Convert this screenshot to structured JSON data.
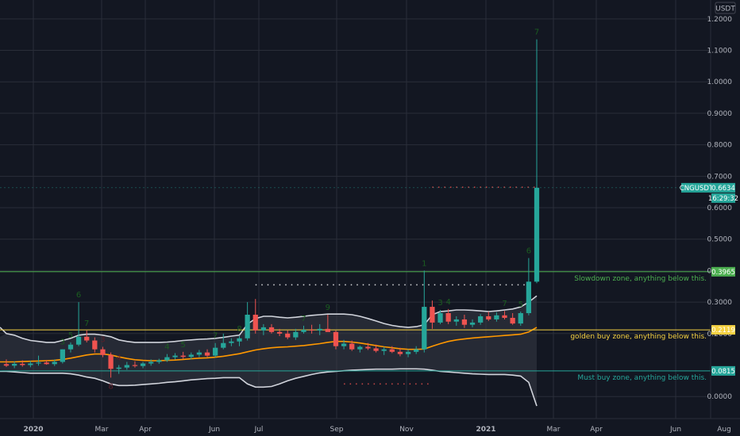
{
  "currency_label": "USDT",
  "ticker_label": "CNGUSDT",
  "colors": {
    "background": "#131722",
    "grid": "#2a2e39",
    "up": "#26a69a",
    "down": "#ef5350",
    "slowdown_line": "#4caf50",
    "golden_line": "#f5d142",
    "must_line": "#26a69a",
    "band_outer": "#d1d4dc",
    "band_mid": "#ff9800",
    "band_fill": "#2a2e39",
    "count_green": "#1b5e20",
    "count_red": "#5d1f2a",
    "axis_text": "#b2b5be",
    "price_box_last": "#26a69a",
    "price_box_yellow": "#f5d142"
  },
  "chart_data": {
    "type": "candlestick",
    "title": "",
    "x_axis": {
      "ticks": [
        "2020",
        "Mar",
        "Apr",
        "Jun",
        "Jul",
        "Sep",
        "Nov",
        "2021",
        "Mar",
        "Apr",
        "Jun",
        "Aug"
      ],
      "range": [
        "Dec 2019",
        "Aug 2021"
      ]
    },
    "y_axis": {
      "ticks": [
        0.0,
        0.0815,
        0.2,
        0.3,
        0.4,
        0.5,
        0.6,
        0.7,
        0.8,
        0.9,
        1.0,
        1.1,
        1.2
      ],
      "tick_labels": [
        "0.0000",
        "0.0815",
        "0.2000",
        "0.3000",
        "0.4000",
        "0.5000",
        "0.6000",
        "0.7000",
        "0.8000",
        "0.9000",
        "1.0000",
        "1.1000",
        "1.2000"
      ],
      "range": [
        -0.07,
        1.26
      ],
      "grid": true
    },
    "last_price": {
      "value": 0.6634,
      "label": "0.6634",
      "countdown": "16:29:32"
    },
    "horizontal_levels": [
      {
        "value": 0.3965,
        "label": "0.3965",
        "text": "Slowdown zone, anything below this.",
        "color": "#4caf50"
      },
      {
        "value": 0.2119,
        "label": "0.2119",
        "text": "golden buy zone, anything below this.",
        "color": "#f5d142"
      },
      {
        "value": 0.0815,
        "label": "0.0815",
        "text": "Must buy zone, anything below this.",
        "color": "#26a69a"
      }
    ],
    "candles": [
      {
        "o": 0.103,
        "h": 0.118,
        "l": 0.094,
        "c": 0.098
      },
      {
        "o": 0.098,
        "h": 0.112,
        "l": 0.09,
        "c": 0.104
      },
      {
        "o": 0.104,
        "h": 0.115,
        "l": 0.095,
        "c": 0.1
      },
      {
        "o": 0.1,
        "h": 0.113,
        "l": 0.093,
        "c": 0.105
      },
      {
        "o": 0.105,
        "h": 0.13,
        "l": 0.098,
        "c": 0.108
      },
      {
        "o": 0.108,
        "h": 0.116,
        "l": 0.101,
        "c": 0.103
      },
      {
        "o": 0.103,
        "h": 0.118,
        "l": 0.097,
        "c": 0.11
      },
      {
        "o": 0.11,
        "h": 0.15,
        "l": 0.105,
        "c": 0.15
      },
      {
        "o": 0.15,
        "h": 0.172,
        "l": 0.14,
        "c": 0.165
      },
      {
        "o": 0.165,
        "h": 0.3,
        "l": 0.16,
        "c": 0.19
      },
      {
        "o": 0.19,
        "h": 0.21,
        "l": 0.172,
        "c": 0.178
      },
      {
        "o": 0.178,
        "h": 0.188,
        "l": 0.14,
        "c": 0.15
      },
      {
        "o": 0.15,
        "h": 0.158,
        "l": 0.125,
        "c": 0.132
      },
      {
        "o": 0.132,
        "h": 0.14,
        "l": 0.06,
        "c": 0.088
      },
      {
        "o": 0.088,
        "h": 0.1,
        "l": 0.072,
        "c": 0.092
      },
      {
        "o": 0.092,
        "h": 0.11,
        "l": 0.085,
        "c": 0.1
      },
      {
        "o": 0.1,
        "h": 0.112,
        "l": 0.092,
        "c": 0.097
      },
      {
        "o": 0.097,
        "h": 0.11,
        "l": 0.09,
        "c": 0.105
      },
      {
        "o": 0.105,
        "h": 0.118,
        "l": 0.098,
        "c": 0.11
      },
      {
        "o": 0.11,
        "h": 0.12,
        "l": 0.104,
        "c": 0.115
      },
      {
        "o": 0.115,
        "h": 0.135,
        "l": 0.11,
        "c": 0.125
      },
      {
        "o": 0.125,
        "h": 0.138,
        "l": 0.118,
        "c": 0.13
      },
      {
        "o": 0.13,
        "h": 0.142,
        "l": 0.12,
        "c": 0.126
      },
      {
        "o": 0.126,
        "h": 0.14,
        "l": 0.118,
        "c": 0.133
      },
      {
        "o": 0.133,
        "h": 0.148,
        "l": 0.125,
        "c": 0.14
      },
      {
        "o": 0.14,
        "h": 0.15,
        "l": 0.125,
        "c": 0.13
      },
      {
        "o": 0.13,
        "h": 0.17,
        "l": 0.125,
        "c": 0.155
      },
      {
        "o": 0.155,
        "h": 0.2,
        "l": 0.15,
        "c": 0.17
      },
      {
        "o": 0.17,
        "h": 0.185,
        "l": 0.16,
        "c": 0.175
      },
      {
        "o": 0.175,
        "h": 0.192,
        "l": 0.16,
        "c": 0.185
      },
      {
        "o": 0.185,
        "h": 0.3,
        "l": 0.178,
        "c": 0.26
      },
      {
        "o": 0.26,
        "h": 0.31,
        "l": 0.2,
        "c": 0.21
      },
      {
        "o": 0.21,
        "h": 0.23,
        "l": 0.195,
        "c": 0.22
      },
      {
        "o": 0.22,
        "h": 0.23,
        "l": 0.2,
        "c": 0.205
      },
      {
        "o": 0.205,
        "h": 0.215,
        "l": 0.192,
        "c": 0.2
      },
      {
        "o": 0.2,
        "h": 0.21,
        "l": 0.182,
        "c": 0.188
      },
      {
        "o": 0.188,
        "h": 0.215,
        "l": 0.18,
        "c": 0.205
      },
      {
        "o": 0.205,
        "h": 0.225,
        "l": 0.2,
        "c": 0.212
      },
      {
        "o": 0.212,
        "h": 0.228,
        "l": 0.2,
        "c": 0.21
      },
      {
        "o": 0.21,
        "h": 0.23,
        "l": 0.195,
        "c": 0.215
      },
      {
        "o": 0.215,
        "h": 0.26,
        "l": 0.208,
        "c": 0.205
      },
      {
        "o": 0.205,
        "h": 0.21,
        "l": 0.15,
        "c": 0.16
      },
      {
        "o": 0.16,
        "h": 0.18,
        "l": 0.15,
        "c": 0.168
      },
      {
        "o": 0.168,
        "h": 0.178,
        "l": 0.145,
        "c": 0.15
      },
      {
        "o": 0.15,
        "h": 0.162,
        "l": 0.14,
        "c": 0.158
      },
      {
        "o": 0.158,
        "h": 0.17,
        "l": 0.148,
        "c": 0.153
      },
      {
        "o": 0.153,
        "h": 0.165,
        "l": 0.14,
        "c": 0.145
      },
      {
        "o": 0.145,
        "h": 0.158,
        "l": 0.132,
        "c": 0.15
      },
      {
        "o": 0.15,
        "h": 0.16,
        "l": 0.138,
        "c": 0.142
      },
      {
        "o": 0.142,
        "h": 0.155,
        "l": 0.128,
        "c": 0.135
      },
      {
        "o": 0.135,
        "h": 0.15,
        "l": 0.125,
        "c": 0.142
      },
      {
        "o": 0.142,
        "h": 0.16,
        "l": 0.135,
        "c": 0.15
      },
      {
        "o": 0.15,
        "h": 0.4,
        "l": 0.14,
        "c": 0.285
      },
      {
        "o": 0.285,
        "h": 0.305,
        "l": 0.215,
        "c": 0.235
      },
      {
        "o": 0.235,
        "h": 0.275,
        "l": 0.23,
        "c": 0.265
      },
      {
        "o": 0.265,
        "h": 0.278,
        "l": 0.23,
        "c": 0.238
      },
      {
        "o": 0.238,
        "h": 0.255,
        "l": 0.225,
        "c": 0.245
      },
      {
        "o": 0.245,
        "h": 0.26,
        "l": 0.218,
        "c": 0.228
      },
      {
        "o": 0.228,
        "h": 0.245,
        "l": 0.22,
        "c": 0.235
      },
      {
        "o": 0.235,
        "h": 0.262,
        "l": 0.228,
        "c": 0.255
      },
      {
        "o": 0.255,
        "h": 0.27,
        "l": 0.24,
        "c": 0.245
      },
      {
        "o": 0.245,
        "h": 0.268,
        "l": 0.238,
        "c": 0.258
      },
      {
        "o": 0.258,
        "h": 0.272,
        "l": 0.245,
        "c": 0.25
      },
      {
        "o": 0.25,
        "h": 0.265,
        "l": 0.228,
        "c": 0.232
      },
      {
        "o": 0.232,
        "h": 0.27,
        "l": 0.225,
        "c": 0.265
      },
      {
        "o": 0.265,
        "h": 0.44,
        "l": 0.258,
        "c": 0.365
      },
      {
        "o": 0.365,
        "h": 1.135,
        "l": 0.36,
        "c": 0.6634
      }
    ],
    "bands": {
      "upper": [
        0.2,
        0.195,
        0.185,
        0.178,
        0.175,
        0.172,
        0.172,
        0.178,
        0.185,
        0.195,
        0.198,
        0.198,
        0.195,
        0.19,
        0.18,
        0.175,
        0.172,
        0.172,
        0.172,
        0.172,
        0.173,
        0.175,
        0.178,
        0.18,
        0.182,
        0.183,
        0.185,
        0.188,
        0.192,
        0.195,
        0.23,
        0.248,
        0.255,
        0.255,
        0.252,
        0.25,
        0.252,
        0.255,
        0.258,
        0.26,
        0.262,
        0.262,
        0.262,
        0.26,
        0.255,
        0.248,
        0.24,
        0.232,
        0.226,
        0.222,
        0.22,
        0.222,
        0.228,
        0.26,
        0.27,
        0.272,
        0.275,
        0.275,
        0.274,
        0.272,
        0.27,
        0.272,
        0.275,
        0.278,
        0.285,
        0.3,
        0.32
      ],
      "middle": [
        0.11,
        0.11,
        0.111,
        0.112,
        0.113,
        0.114,
        0.115,
        0.118,
        0.122,
        0.127,
        0.132,
        0.135,
        0.135,
        0.132,
        0.126,
        0.121,
        0.117,
        0.115,
        0.114,
        0.114,
        0.115,
        0.116,
        0.118,
        0.12,
        0.122,
        0.123,
        0.125,
        0.128,
        0.132,
        0.136,
        0.142,
        0.148,
        0.152,
        0.155,
        0.157,
        0.158,
        0.16,
        0.162,
        0.165,
        0.168,
        0.172,
        0.175,
        0.175,
        0.173,
        0.17,
        0.166,
        0.162,
        0.158,
        0.155,
        0.152,
        0.15,
        0.15,
        0.151,
        0.16,
        0.168,
        0.175,
        0.18,
        0.183,
        0.186,
        0.188,
        0.19,
        0.192,
        0.194,
        0.196,
        0.198,
        0.205,
        0.22
      ],
      "lower": [
        0.08,
        0.078,
        0.076,
        0.074,
        0.074,
        0.074,
        0.074,
        0.074,
        0.072,
        0.068,
        0.062,
        0.058,
        0.05,
        0.04,
        0.035,
        0.035,
        0.036,
        0.038,
        0.04,
        0.042,
        0.045,
        0.047,
        0.05,
        0.053,
        0.055,
        0.057,
        0.058,
        0.06,
        0.06,
        0.06,
        0.04,
        0.03,
        0.03,
        0.032,
        0.04,
        0.05,
        0.058,
        0.064,
        0.07,
        0.075,
        0.078,
        0.08,
        0.082,
        0.084,
        0.085,
        0.086,
        0.087,
        0.087,
        0.087,
        0.088,
        0.088,
        0.088,
        0.087,
        0.084,
        0.08,
        0.078,
        0.076,
        0.074,
        0.072,
        0.071,
        0.07,
        0.07,
        0.07,
        0.068,
        0.065,
        0.045,
        -0.03
      ]
    },
    "markers": [
      {
        "index": 9,
        "label": "6",
        "side": "top",
        "color": "#1b5e20"
      },
      {
        "index": 10,
        "label": "7",
        "side": "top",
        "color": "#1b5e20"
      },
      {
        "index": 7,
        "label": "3",
        "side": "top",
        "color": "#1b5e20"
      },
      {
        "index": 8,
        "label": "5",
        "side": "top",
        "color": "#1b5e20"
      },
      {
        "index": 13,
        "label": "8",
        "side": "bottom",
        "color": "#5d1f2a"
      },
      {
        "index": 14,
        "label": "4",
        "side": "top",
        "color": "#5d1f2a"
      },
      {
        "index": 12,
        "label": "3",
        "side": "top",
        "color": "#5d1f2a"
      },
      {
        "index": 20,
        "label": "4",
        "side": "top",
        "color": "#1b5e20"
      },
      {
        "index": 22,
        "label": "5",
        "side": "top",
        "color": "#1b5e20"
      },
      {
        "index": 26,
        "label": "7",
        "side": "top",
        "color": "#1b5e20"
      },
      {
        "index": 29,
        "label": "8",
        "side": "top",
        "color": "#1b5e20"
      },
      {
        "index": 37,
        "label": "7",
        "side": "top",
        "color": "#1b5e20"
      },
      {
        "index": 40,
        "label": "9",
        "side": "top",
        "color": "#1b5e20"
      },
      {
        "index": 52,
        "label": "1",
        "side": "top",
        "color": "#1b5e20"
      },
      {
        "index": 54,
        "label": "3",
        "side": "top",
        "color": "#1b5e20"
      },
      {
        "index": 55,
        "label": "4",
        "side": "top",
        "color": "#1b5e20"
      },
      {
        "index": 62,
        "label": "7",
        "side": "top",
        "color": "#1b5e20"
      },
      {
        "index": 64,
        "label": "5",
        "side": "top",
        "color": "#1b5e20"
      },
      {
        "index": 65,
        "label": "6",
        "side": "top",
        "color": "#1b5e20"
      },
      {
        "index": 66,
        "label": "7",
        "side": "top",
        "color": "#1b5e20"
      }
    ],
    "dotted_lines": [
      {
        "value": 0.355,
        "from_index": 31,
        "to_index": 65,
        "color": "#ffffff"
      },
      {
        "value": 0.665,
        "from_index": 53,
        "to_index": 66,
        "color": "#ef5350"
      },
      {
        "value": 0.04,
        "from_index": 42,
        "to_index": 53,
        "color": "#ef5350"
      }
    ]
  }
}
